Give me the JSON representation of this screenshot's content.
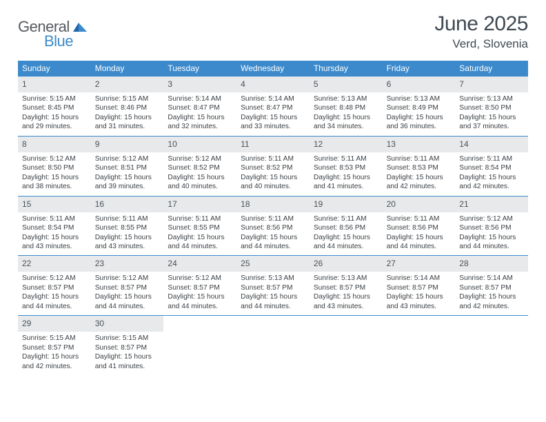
{
  "logo": {
    "text1": "General",
    "text2": "Blue"
  },
  "title": "June 2025",
  "location": "Verd, Slovenia",
  "colors": {
    "header_bg": "#3c8acb",
    "daynum_bg": "#e7e9eb",
    "week_border": "#3c8acb",
    "title_color": "#3f4952",
    "body_text": "#3a3f44"
  },
  "day_names": [
    "Sunday",
    "Monday",
    "Tuesday",
    "Wednesday",
    "Thursday",
    "Friday",
    "Saturday"
  ],
  "weeks": [
    [
      {
        "num": "1",
        "sunrise": "Sunrise: 5:15 AM",
        "sunset": "Sunset: 8:45 PM",
        "daylight": "Daylight: 15 hours and 29 minutes."
      },
      {
        "num": "2",
        "sunrise": "Sunrise: 5:15 AM",
        "sunset": "Sunset: 8:46 PM",
        "daylight": "Daylight: 15 hours and 31 minutes."
      },
      {
        "num": "3",
        "sunrise": "Sunrise: 5:14 AM",
        "sunset": "Sunset: 8:47 PM",
        "daylight": "Daylight: 15 hours and 32 minutes."
      },
      {
        "num": "4",
        "sunrise": "Sunrise: 5:14 AM",
        "sunset": "Sunset: 8:47 PM",
        "daylight": "Daylight: 15 hours and 33 minutes."
      },
      {
        "num": "5",
        "sunrise": "Sunrise: 5:13 AM",
        "sunset": "Sunset: 8:48 PM",
        "daylight": "Daylight: 15 hours and 34 minutes."
      },
      {
        "num": "6",
        "sunrise": "Sunrise: 5:13 AM",
        "sunset": "Sunset: 8:49 PM",
        "daylight": "Daylight: 15 hours and 36 minutes."
      },
      {
        "num": "7",
        "sunrise": "Sunrise: 5:13 AM",
        "sunset": "Sunset: 8:50 PM",
        "daylight": "Daylight: 15 hours and 37 minutes."
      }
    ],
    [
      {
        "num": "8",
        "sunrise": "Sunrise: 5:12 AM",
        "sunset": "Sunset: 8:50 PM",
        "daylight": "Daylight: 15 hours and 38 minutes."
      },
      {
        "num": "9",
        "sunrise": "Sunrise: 5:12 AM",
        "sunset": "Sunset: 8:51 PM",
        "daylight": "Daylight: 15 hours and 39 minutes."
      },
      {
        "num": "10",
        "sunrise": "Sunrise: 5:12 AM",
        "sunset": "Sunset: 8:52 PM",
        "daylight": "Daylight: 15 hours and 40 minutes."
      },
      {
        "num": "11",
        "sunrise": "Sunrise: 5:11 AM",
        "sunset": "Sunset: 8:52 PM",
        "daylight": "Daylight: 15 hours and 40 minutes."
      },
      {
        "num": "12",
        "sunrise": "Sunrise: 5:11 AM",
        "sunset": "Sunset: 8:53 PM",
        "daylight": "Daylight: 15 hours and 41 minutes."
      },
      {
        "num": "13",
        "sunrise": "Sunrise: 5:11 AM",
        "sunset": "Sunset: 8:53 PM",
        "daylight": "Daylight: 15 hours and 42 minutes."
      },
      {
        "num": "14",
        "sunrise": "Sunrise: 5:11 AM",
        "sunset": "Sunset: 8:54 PM",
        "daylight": "Daylight: 15 hours and 42 minutes."
      }
    ],
    [
      {
        "num": "15",
        "sunrise": "Sunrise: 5:11 AM",
        "sunset": "Sunset: 8:54 PM",
        "daylight": "Daylight: 15 hours and 43 minutes."
      },
      {
        "num": "16",
        "sunrise": "Sunrise: 5:11 AM",
        "sunset": "Sunset: 8:55 PM",
        "daylight": "Daylight: 15 hours and 43 minutes."
      },
      {
        "num": "17",
        "sunrise": "Sunrise: 5:11 AM",
        "sunset": "Sunset: 8:55 PM",
        "daylight": "Daylight: 15 hours and 44 minutes."
      },
      {
        "num": "18",
        "sunrise": "Sunrise: 5:11 AM",
        "sunset": "Sunset: 8:56 PM",
        "daylight": "Daylight: 15 hours and 44 minutes."
      },
      {
        "num": "19",
        "sunrise": "Sunrise: 5:11 AM",
        "sunset": "Sunset: 8:56 PM",
        "daylight": "Daylight: 15 hours and 44 minutes."
      },
      {
        "num": "20",
        "sunrise": "Sunrise: 5:11 AM",
        "sunset": "Sunset: 8:56 PM",
        "daylight": "Daylight: 15 hours and 44 minutes."
      },
      {
        "num": "21",
        "sunrise": "Sunrise: 5:12 AM",
        "sunset": "Sunset: 8:56 PM",
        "daylight": "Daylight: 15 hours and 44 minutes."
      }
    ],
    [
      {
        "num": "22",
        "sunrise": "Sunrise: 5:12 AM",
        "sunset": "Sunset: 8:57 PM",
        "daylight": "Daylight: 15 hours and 44 minutes."
      },
      {
        "num": "23",
        "sunrise": "Sunrise: 5:12 AM",
        "sunset": "Sunset: 8:57 PM",
        "daylight": "Daylight: 15 hours and 44 minutes."
      },
      {
        "num": "24",
        "sunrise": "Sunrise: 5:12 AM",
        "sunset": "Sunset: 8:57 PM",
        "daylight": "Daylight: 15 hours and 44 minutes."
      },
      {
        "num": "25",
        "sunrise": "Sunrise: 5:13 AM",
        "sunset": "Sunset: 8:57 PM",
        "daylight": "Daylight: 15 hours and 44 minutes."
      },
      {
        "num": "26",
        "sunrise": "Sunrise: 5:13 AM",
        "sunset": "Sunset: 8:57 PM",
        "daylight": "Daylight: 15 hours and 43 minutes."
      },
      {
        "num": "27",
        "sunrise": "Sunrise: 5:14 AM",
        "sunset": "Sunset: 8:57 PM",
        "daylight": "Daylight: 15 hours and 43 minutes."
      },
      {
        "num": "28",
        "sunrise": "Sunrise: 5:14 AM",
        "sunset": "Sunset: 8:57 PM",
        "daylight": "Daylight: 15 hours and 42 minutes."
      }
    ],
    [
      {
        "num": "29",
        "sunrise": "Sunrise: 5:15 AM",
        "sunset": "Sunset: 8:57 PM",
        "daylight": "Daylight: 15 hours and 42 minutes."
      },
      {
        "num": "30",
        "sunrise": "Sunrise: 5:15 AM",
        "sunset": "Sunset: 8:57 PM",
        "daylight": "Daylight: 15 hours and 41 minutes."
      },
      null,
      null,
      null,
      null,
      null
    ]
  ]
}
